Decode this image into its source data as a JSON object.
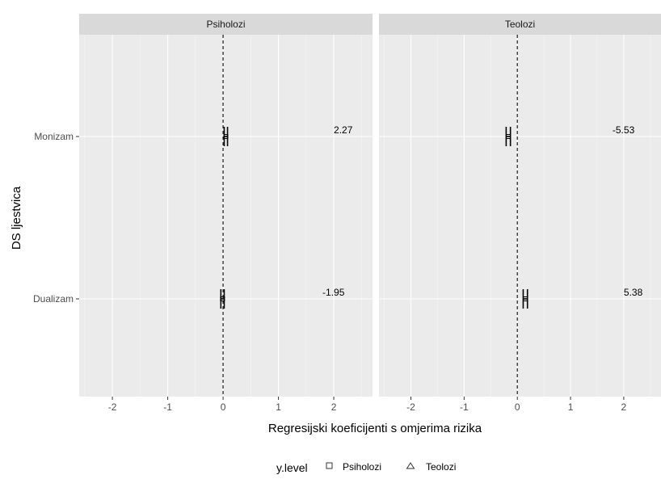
{
  "chart_data": {
    "type": "forest",
    "facets": [
      "Psiholozi",
      "Teolozi"
    ],
    "categories": [
      "Monizam",
      "Dualizam"
    ],
    "xlabel": "Regresijski koeficijenti s omjerima rizika",
    "ylabel": "DS ljestvica",
    "xlim": [
      -2.6,
      2.7
    ],
    "x_ticks": [
      -2,
      -1,
      0,
      1,
      2
    ],
    "reference_line": 0,
    "grid": true,
    "legend_position": "bottom",
    "legend": {
      "title": "y.level",
      "items": [
        {
          "label": "Psiholozi",
          "shape": "square"
        },
        {
          "label": "Teolozi",
          "shape": "triangle"
        }
      ]
    },
    "panels": [
      {
        "facet": "Psiholozi",
        "points": [
          {
            "category": "Monizam",
            "estimate": 0.05,
            "ci_low": 0.02,
            "ci_high": 0.08,
            "label": "2.27"
          },
          {
            "category": "Dualizam",
            "estimate": -0.01,
            "ci_low": -0.04,
            "ci_high": 0.02,
            "label": "-1.95"
          }
        ]
      },
      {
        "facet": "Teolozi",
        "points": [
          {
            "category": "Monizam",
            "estimate": -0.17,
            "ci_low": -0.21,
            "ci_high": -0.13,
            "label": "-5.53"
          },
          {
            "category": "Dualizam",
            "estimate": 0.15,
            "ci_low": 0.11,
            "ci_high": 0.19,
            "label": "5.38"
          }
        ]
      }
    ]
  }
}
